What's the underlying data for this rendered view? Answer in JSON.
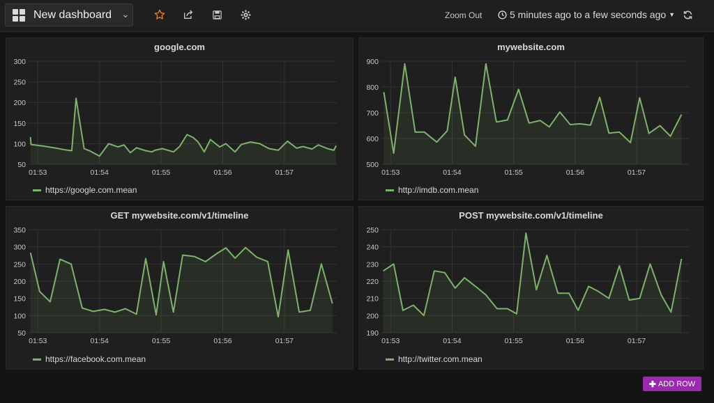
{
  "topbar": {
    "dashboard_title": "New dashboard",
    "zoom_out_label": "Zoom Out",
    "time_range": "5 minutes ago to a few seconds ago",
    "icons": [
      "dashboard-grid-icon",
      "star-icon",
      "share-icon",
      "save-icon",
      "gear-icon",
      "clock-icon",
      "refresh-icon"
    ],
    "star_color": "#eb7b18"
  },
  "add_row_label": "ADD ROW",
  "add_row_color": "#9c27b0",
  "series_color": "#7eb26d",
  "panels": [
    {
      "title": "google.com",
      "legend": "https://google.com.mean",
      "chart_data": {
        "type": "line",
        "title": "google.com",
        "y_ticks": [
          50,
          100,
          150,
          200,
          250,
          300
        ],
        "ylim": [
          50,
          300
        ],
        "x_ticks": [
          "01:53",
          "01:54",
          "01:55",
          "01:56",
          "01:57"
        ],
        "x_tick_minutes": [
          0,
          1,
          2,
          3,
          4
        ],
        "xlim": [
          -0.15,
          4.85
        ],
        "series": [
          {
            "name": "https://google.com.mean",
            "x": [
              -0.12,
              -0.11,
              0.1,
              0.3,
              0.44,
              0.55,
              0.62,
              0.75,
              0.85,
              1.0,
              1.15,
              1.3,
              1.4,
              1.5,
              1.6,
              1.75,
              1.85,
              1.9,
              2.02,
              2.2,
              2.3,
              2.42,
              2.52,
              2.6,
              2.7,
              2.8,
              2.95,
              3.05,
              3.2,
              3.3,
              3.45,
              3.6,
              3.75,
              3.9,
              4.05,
              4.2,
              4.3,
              4.45,
              4.55,
              4.7,
              4.8,
              4.84
            ],
            "y": [
              116,
              98,
              94,
              89,
              85,
              83,
              210,
              88,
              82,
              70,
              100,
              92,
              97,
              78,
              90,
              83,
              80,
              84,
              88,
              80,
              93,
              122,
              115,
              104,
              80,
              110,
              92,
              100,
              80,
              98,
              104,
              100,
              88,
              84,
              106,
              89,
              93,
              87,
              97,
              88,
              84,
              95
            ]
          }
        ],
        "grid": true,
        "fill": true
      }
    },
    {
      "title": "mywebsite.com",
      "legend": "http://imdb.com.mean",
      "chart_data": {
        "type": "line",
        "title": "mywebsite.com",
        "y_ticks": [
          500,
          600,
          700,
          800,
          900
        ],
        "ylim": [
          500,
          900
        ],
        "x_ticks": [
          "01:53",
          "01:54",
          "01:55",
          "01:56",
          "01:57"
        ],
        "x_tick_minutes": [
          0,
          1,
          2,
          3,
          4
        ],
        "xlim": [
          -0.15,
          4.85
        ],
        "series": [
          {
            "name": "http://imdb.com.mean",
            "x": [
              -0.11,
              0.05,
              0.23,
              0.4,
              0.55,
              0.75,
              0.92,
              1.05,
              1.2,
              1.38,
              1.55,
              1.72,
              1.9,
              2.08,
              2.25,
              2.43,
              2.58,
              2.75,
              2.92,
              3.08,
              3.25,
              3.4,
              3.55,
              3.72,
              3.9,
              4.05,
              4.2,
              4.38,
              4.55,
              4.73
            ],
            "y": [
              780,
              543,
              890,
              625,
              625,
              586,
              630,
              838,
              614,
              570,
              890,
              664,
              672,
              791,
              660,
              670,
              645,
              703,
              654,
              657,
              652,
              760,
              621,
              625,
              584,
              758,
              620,
              650,
              609,
              693
            ]
          }
        ],
        "grid": true,
        "fill": true
      }
    },
    {
      "title": "GET mywebsite.com/v1/timeline",
      "legend": "https://facebook.com.mean",
      "chart_data": {
        "type": "line",
        "title": "GET mywebsite.com/v1/timeline",
        "y_ticks": [
          50,
          100,
          150,
          200,
          250,
          300,
          350
        ],
        "ylim": [
          50,
          350
        ],
        "x_ticks": [
          "01:53",
          "01:54",
          "01:55",
          "01:56",
          "01:57"
        ],
        "x_tick_minutes": [
          0,
          1,
          2,
          3,
          4
        ],
        "xlim": [
          -0.15,
          4.85
        ],
        "series": [
          {
            "name": "https://facebook.com.mean",
            "x": [
              -0.12,
              0.03,
              0.2,
              0.36,
              0.54,
              0.72,
              0.9,
              1.08,
              1.25,
              1.42,
              1.6,
              1.75,
              1.92,
              2.04,
              2.2,
              2.35,
              2.54,
              2.72,
              2.9,
              3.05,
              3.2,
              3.37,
              3.55,
              3.73,
              3.9,
              4.06,
              4.24,
              4.42,
              4.6,
              4.78
            ],
            "y": [
              283,
              170,
              140,
              264,
              250,
              122,
              112,
              118,
              110,
              120,
              104,
              266,
              102,
              257,
              110,
              276,
              272,
              257,
              280,
              297,
              267,
              298,
              270,
              257,
              96,
              291,
              110,
              115,
              250,
              135
            ]
          }
        ],
        "grid": true,
        "fill": true
      }
    },
    {
      "title": "POST mywebsite.com/v1/timeline",
      "legend": "http://twitter.com.mean",
      "chart_data": {
        "type": "line",
        "title": "POST mywebsite.com/v1/timeline",
        "y_ticks": [
          190,
          200,
          210,
          220,
          230,
          240,
          250
        ],
        "ylim": [
          190,
          250
        ],
        "x_ticks": [
          "01:53",
          "01:54",
          "01:55",
          "01:56",
          "01:57"
        ],
        "x_tick_minutes": [
          0,
          1,
          2,
          3,
          4
        ],
        "xlim": [
          -0.15,
          4.85
        ],
        "series": [
          {
            "name": "http://twitter.com.mean",
            "x": [
              -0.12,
              0.05,
              0.2,
              0.37,
              0.54,
              0.71,
              0.88,
              1.05,
              1.2,
              1.38,
              1.55,
              1.73,
              1.9,
              2.05,
              2.2,
              2.37,
              2.54,
              2.72,
              2.9,
              3.05,
              3.22,
              3.38,
              3.55,
              3.72,
              3.88,
              4.05,
              4.22,
              4.4,
              4.56,
              4.73
            ],
            "y": [
              226,
              230,
              203,
              206,
              200,
              226,
              225,
              216,
              222,
              217,
              212,
              204,
              204,
              201,
              248,
              215,
              235,
              213,
              213,
              203,
              217,
              214,
              210,
              229,
              209,
              210,
              230,
              212,
              202,
              233
            ]
          }
        ],
        "grid": true,
        "fill": true
      }
    }
  ]
}
